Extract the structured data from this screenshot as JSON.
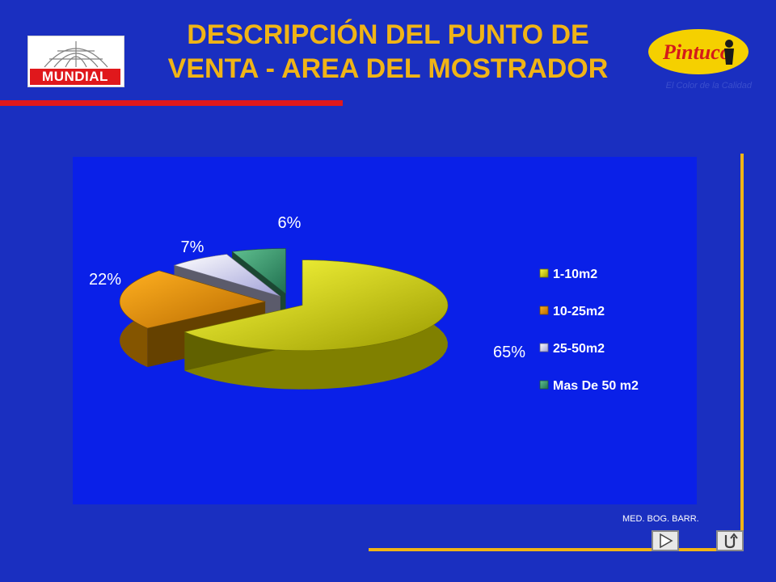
{
  "header": {
    "title_line1": "DESCRIPCIÓN DEL PUNTO DE",
    "title_line2": "VENTA - AREA DEL MOSTRADOR"
  },
  "logos": {
    "left": "MUNDIAL",
    "right": "Pintuco",
    "tagline": "El Color de la Calidad"
  },
  "footer": {
    "text": "MED. BOG. BARR."
  },
  "chart_data": {
    "type": "pie",
    "title": "",
    "slices": [
      {
        "label": "1-10m2",
        "value": 65,
        "display": "65%",
        "color": "#e8e800"
      },
      {
        "label": "10-25m2",
        "value": 22,
        "display": "22%",
        "color": "#f09a00"
      },
      {
        "label": "25-50m2",
        "value": 7,
        "display": "7%",
        "color": "#d8d8ff"
      },
      {
        "label": "Mas De 50 m2",
        "value": 6,
        "display": "6%",
        "color": "#40a878"
      }
    ],
    "legend_position": "right",
    "style": "3D exploded pie"
  }
}
